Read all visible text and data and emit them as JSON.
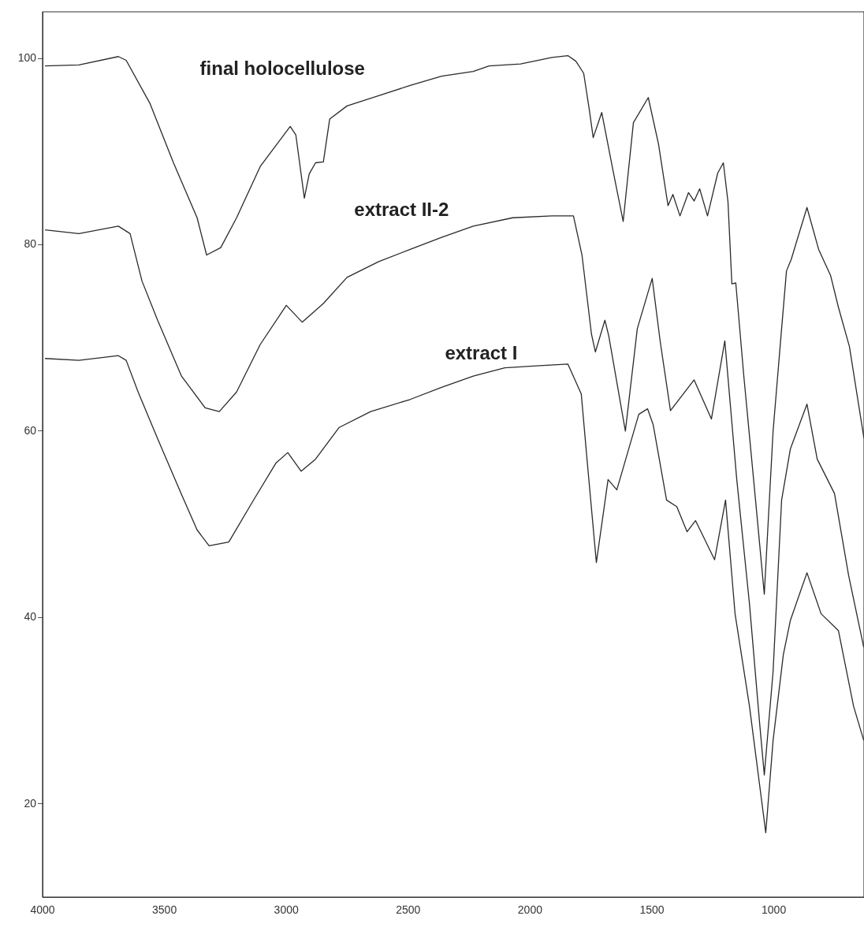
{
  "chart_data": {
    "type": "line",
    "xlim": [
      4000,
      630
    ],
    "xticks": [
      4000,
      3500,
      3000,
      2500,
      2000,
      1500,
      1000
    ],
    "ylim": [
      10,
      105
    ],
    "yticks": [
      20,
      40,
      60,
      80,
      100
    ],
    "grid": false,
    "legend": false,
    "marker": "none",
    "line_style": "solid",
    "series": [
      {
        "color": "#2a2a2a",
        "x": [
          3990,
          3851,
          3689,
          3657,
          3560,
          3463,
          3366,
          3327,
          3269,
          3204,
          3107,
          2984,
          2961,
          2926,
          2906,
          2880,
          2848,
          2822,
          2751,
          2621,
          2492,
          2363,
          2233,
          2168,
          2039,
          1910,
          1845,
          1812,
          1780,
          1757,
          1741,
          1706,
          1660,
          1618,
          1576,
          1515,
          1473,
          1434,
          1414,
          1385,
          1350,
          1327,
          1304,
          1272,
          1230,
          1207,
          1188,
          1172,
          1156,
          1123,
          1075,
          1039,
          1003,
          968,
          948,
          929,
          864,
          816,
          767,
          735,
          690,
          630
        ],
        "values": [
          99.2,
          99.3,
          100.2,
          99.8,
          95.2,
          88.8,
          82.9,
          78.9,
          79.7,
          82.9,
          88.4,
          92.7,
          91.8,
          85,
          87.6,
          88.8,
          88.9,
          93.5,
          94.9,
          96,
          97.1,
          98.1,
          98.6,
          99.2,
          99.4,
          100.1,
          100.3,
          99.7,
          98.4,
          94.5,
          91.5,
          94.2,
          88,
          82.5,
          93.1,
          95.8,
          90.8,
          84.2,
          85.4,
          83.1,
          85.6,
          84.7,
          86,
          83.1,
          87.7,
          88.8,
          84.6,
          75.8,
          75.9,
          65.9,
          52.6,
          42.5,
          60,
          71,
          77.2,
          78.4,
          84,
          79.5,
          76.7,
          73.3,
          69.1,
          59.2
        ]
      },
      {
        "color": "#2a2a2a",
        "x": [
          3990,
          3851,
          3689,
          3641,
          3592,
          3528,
          3430,
          3333,
          3275,
          3204,
          3107,
          3000,
          2935,
          2848,
          2751,
          2621,
          2492,
          2363,
          2233,
          2071,
          1910,
          1822,
          1787,
          1748,
          1732,
          1693,
          1677,
          1609,
          1560,
          1499,
          1466,
          1424,
          1327,
          1256,
          1201,
          1152,
          1100,
          1058,
          1039,
          1003,
          968,
          932,
          864,
          822,
          751,
          693,
          631
        ],
        "values": [
          81.6,
          81.2,
          82,
          81.2,
          76.1,
          71.9,
          65.9,
          62.5,
          62.1,
          64.2,
          69.3,
          73.5,
          71.7,
          73.7,
          76.5,
          78.2,
          79.5,
          80.8,
          82,
          82.9,
          83.1,
          83.1,
          78.9,
          70.4,
          68.5,
          71.9,
          70.2,
          60,
          71,
          76.4,
          69.6,
          62.2,
          65.5,
          61.3,
          69.7,
          54.8,
          41.5,
          28.6,
          23.1,
          34.2,
          52.6,
          58.1,
          62.9,
          57,
          53.3,
          44.5,
          36.8
        ]
      },
      {
        "color": "#2a2a2a",
        "x": [
          3990,
          3851,
          3689,
          3657,
          3608,
          3528,
          3430,
          3366,
          3317,
          3236,
          3139,
          3042,
          2994,
          2939,
          2880,
          2783,
          2654,
          2492,
          2363,
          2233,
          2104,
          1974,
          1845,
          1790,
          1764,
          1728,
          1680,
          1644,
          1554,
          1518,
          1495,
          1440,
          1398,
          1356,
          1321,
          1243,
          1198,
          1159,
          1100,
          1033,
          1003,
          961,
          932,
          864,
          806,
          735,
          673,
          631
        ],
        "values": [
          67.8,
          67.6,
          68.1,
          67.6,
          64.2,
          59.2,
          53.2,
          49.4,
          47.7,
          48.1,
          52.4,
          56.6,
          57.7,
          55.7,
          57,
          60.4,
          62.1,
          63.4,
          64.7,
          65.9,
          66.8,
          67,
          67.2,
          64,
          56.3,
          45.9,
          54.8,
          53.7,
          61.8,
          62.4,
          60.7,
          52.6,
          51.9,
          49.2,
          50.4,
          46.2,
          52.6,
          40.4,
          30.5,
          16.9,
          26.8,
          36,
          39.7,
          44.8,
          40.4,
          38.6,
          30.5,
          26.8
        ]
      }
    ],
    "annotations": [
      "final holocellulose",
      "extract II-2",
      "extract I"
    ]
  }
}
